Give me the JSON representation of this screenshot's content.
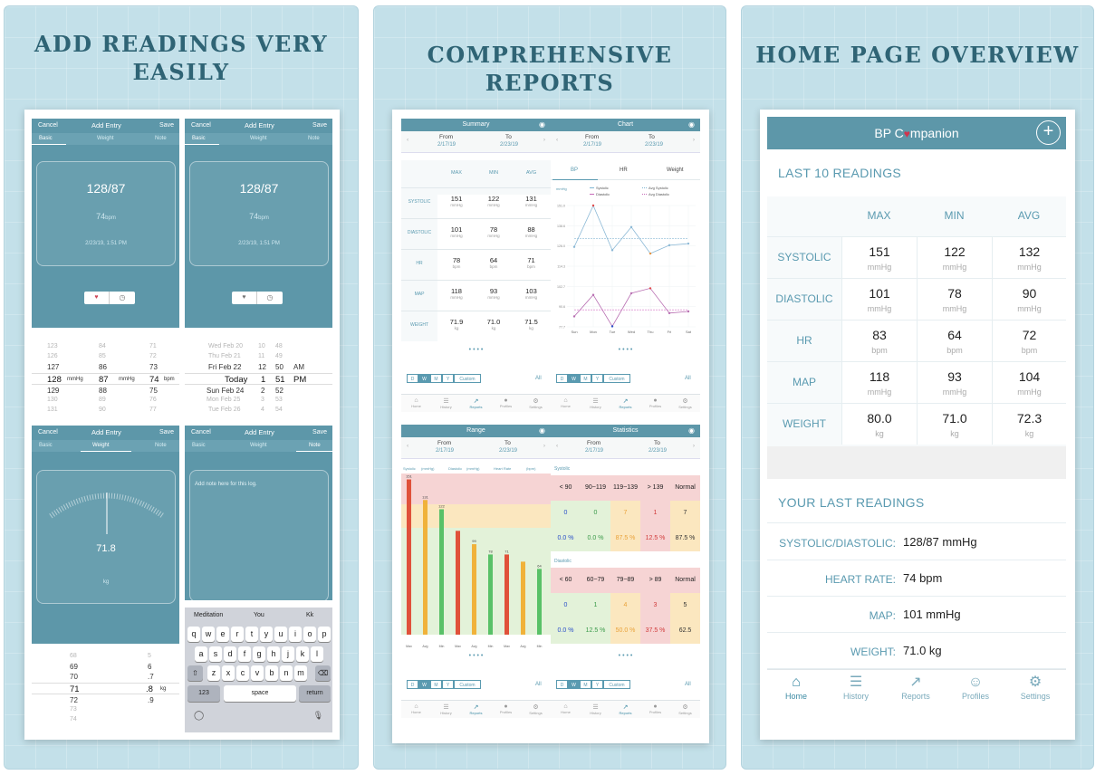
{
  "panels": {
    "left_title": "ADD READINGS VERY EASILY",
    "middle_title": "COMPREHENSIVE REPORTS",
    "right_title": "HOME PAGE OVERVIEW"
  },
  "add_entry": {
    "cancel": "Cancel",
    "title": "Add Entry",
    "save": "Save",
    "segments": [
      "Basic",
      "Weight",
      "Note"
    ],
    "bp_value": "128/87",
    "hr_value": "74",
    "hr_unit": "bpm",
    "timestamp": "2/23/19, 1:51 PM",
    "weight_value": "71.8",
    "weight_unit": "kg",
    "note_placeholder": "Add note here for this log.",
    "bp_picker": {
      "sys": [
        "123",
        "126",
        "127",
        "128",
        "129",
        "130",
        "131"
      ],
      "dia": [
        "84",
        "85",
        "86",
        "87",
        "88",
        "89",
        "90"
      ],
      "hr": [
        "71",
        "72",
        "73",
        "74",
        "75",
        "76",
        "77"
      ],
      "unit_mmhg": "mmHg",
      "unit_bpm": "bpm"
    },
    "date_picker": {
      "dates": [
        "Wed Feb 20",
        "Thu Feb 21",
        "Fri Feb 22",
        "Today",
        "Sun Feb 24",
        "Mon Feb 25",
        "Tue Feb 26"
      ],
      "hours": [
        "10",
        "11",
        "12",
        "1",
        "2",
        "3",
        "4"
      ],
      "minutes": [
        "48",
        "49",
        "50",
        "51",
        "52",
        "53",
        "54"
      ],
      "ampm": [
        "AM",
        "PM"
      ]
    },
    "weight_picker": {
      "whole": [
        "68",
        "69",
        "70",
        "71",
        "72",
        "73",
        "74"
      ],
      "decimal": [
        "5",
        "6",
        ".7",
        ".8",
        ".9"
      ],
      "unit": "kg"
    },
    "keyboard": {
      "suggestions": [
        "Meditation",
        "You",
        "Kk"
      ],
      "row1": [
        "q",
        "w",
        "e",
        "r",
        "t",
        "y",
        "u",
        "i",
        "o",
        "p"
      ],
      "row2": [
        "a",
        "s",
        "d",
        "f",
        "g",
        "h",
        "j",
        "k",
        "l"
      ],
      "row3": [
        "z",
        "x",
        "c",
        "v",
        "b",
        "n",
        "m"
      ],
      "numbers": "123",
      "space": "space",
      "return": "return"
    }
  },
  "reports": {
    "summary_title": "Summary",
    "chart_title": "Chart",
    "range_title": "Range",
    "statistics_title": "Statistics",
    "from_label": "From",
    "to_label": "To",
    "from_date": "2/17/19",
    "to_date": "2/23/19",
    "headers": [
      "MAX",
      "MIN",
      "AVG"
    ],
    "rows": [
      {
        "label": "SYSTOLIC",
        "max": "151",
        "min": "122",
        "avg": "131",
        "unit": "mmHg"
      },
      {
        "label": "DIASTOLIC",
        "max": "101",
        "min": "78",
        "avg": "88",
        "unit": "mmHg"
      },
      {
        "label": "HR",
        "max": "78",
        "min": "64",
        "avg": "71",
        "unit": "bpm"
      },
      {
        "label": "MAP",
        "max": "118",
        "min": "93",
        "avg": "103",
        "unit": "mmHg"
      },
      {
        "label": "WEIGHT",
        "max": "71.9",
        "min": "71.0",
        "avg": "71.5",
        "unit": "kg"
      }
    ],
    "chart_tabs": [
      "BP",
      "HR",
      "Weight"
    ],
    "chart_unit": "mmHg",
    "legend": [
      "Systolic",
      "Avg Systolic",
      "Diastolic",
      "Avg Diastolic"
    ],
    "chart_yticks": [
      "151.0",
      "138.6",
      "126.0",
      "114.3",
      "102.7",
      "90.6",
      "77.7"
    ],
    "chart_days": [
      "Sun",
      "Mon",
      "Tue",
      "Wed",
      "Thu",
      "Fri",
      "Sat"
    ],
    "period_buttons": [
      "D",
      "W",
      "M",
      "Y",
      "Custom"
    ],
    "all_label": "All",
    "tab_bar": [
      "Home",
      "History",
      "Reports",
      "Profiles",
      "Settings"
    ],
    "range_legend": [
      "Systolic",
      "(mmHg)",
      "Diastolic",
      "(mmHg)",
      "Heart Rate",
      "(bpm)"
    ],
    "range_bar_labels": [
      "151",
      "131",
      "122",
      "99",
      "78",
      "71",
      "64"
    ],
    "range_axis": [
      "Max",
      "Avg",
      "Min",
      "Max",
      "Avg",
      "Min",
      "Max",
      "Avg",
      "Min"
    ],
    "stats": {
      "systolic_label": "Systolic",
      "systolic_headers": [
        "< 90",
        "90~119",
        "119~139",
        "> 139",
        "Normal"
      ],
      "systolic_counts": [
        "0",
        "0",
        "7",
        "1",
        "7"
      ],
      "systolic_pct": [
        "0.0 %",
        "0.0 %",
        "87.5 %",
        "12.5 %",
        "87.5 %"
      ],
      "diastolic_label": "Diastolic",
      "diastolic_headers": [
        "< 60",
        "60~79",
        "79~89",
        "> 89",
        "Normal"
      ],
      "diastolic_counts": [
        "0",
        "1",
        "4",
        "3",
        "5"
      ],
      "diastolic_pct": [
        "0.0 %",
        "12.5 %",
        "50.0 %",
        "37.5 %",
        "62.5"
      ]
    }
  },
  "chart_data": {
    "type": "line",
    "x": [
      "Sun",
      "Mon",
      "Tue",
      "Wed",
      "Thu",
      "Fri",
      "Sat"
    ],
    "series": [
      {
        "name": "Systolic",
        "values": [
          126,
          151,
          124,
          138,
          122,
          127,
          128
        ]
      },
      {
        "name": "Avg Systolic",
        "values": [
          131,
          131,
          131,
          131,
          131,
          131,
          131
        ]
      },
      {
        "name": "Diastolic",
        "values": [
          84,
          97,
          78,
          98,
          101,
          86,
          87
        ]
      },
      {
        "name": "Avg Diastolic",
        "values": [
          88,
          88,
          88,
          88,
          88,
          88,
          88
        ]
      }
    ],
    "ylabel": "mmHg",
    "ylim": [
      77.7,
      151.0
    ]
  },
  "home": {
    "app_name_1": "BP C",
    "app_name_2": "mpanion",
    "last10_title": "LAST 10 READINGS",
    "headers": [
      "MAX",
      "MIN",
      "AVG"
    ],
    "rows": [
      {
        "label": "SYSTOLIC",
        "max": "151",
        "min": "122",
        "avg": "132",
        "unit": "mmHg"
      },
      {
        "label": "DIASTOLIC",
        "max": "101",
        "min": "78",
        "avg": "90",
        "unit": "mmHg"
      },
      {
        "label": "HR",
        "max": "83",
        "min": "64",
        "avg": "72",
        "unit": "bpm"
      },
      {
        "label": "MAP",
        "max": "118",
        "min": "93",
        "avg": "104",
        "unit": "mmHg"
      },
      {
        "label": "WEIGHT",
        "max": "80.0",
        "min": "71.0",
        "avg": "72.3",
        "unit": "kg"
      }
    ],
    "your_last_title": "YOUR LAST READINGS",
    "last": [
      {
        "k": "SYSTOLIC/DIASTOLIC:",
        "v": "128/87 mmHg"
      },
      {
        "k": "HEART RATE:",
        "v": "74 bpm"
      },
      {
        "k": "MAP:",
        "v": "101 mmHg"
      },
      {
        "k": "WEIGHT:",
        "v": "71.0 kg"
      }
    ],
    "tabs": [
      "Home",
      "History",
      "Reports",
      "Profiles",
      "Settings"
    ]
  }
}
